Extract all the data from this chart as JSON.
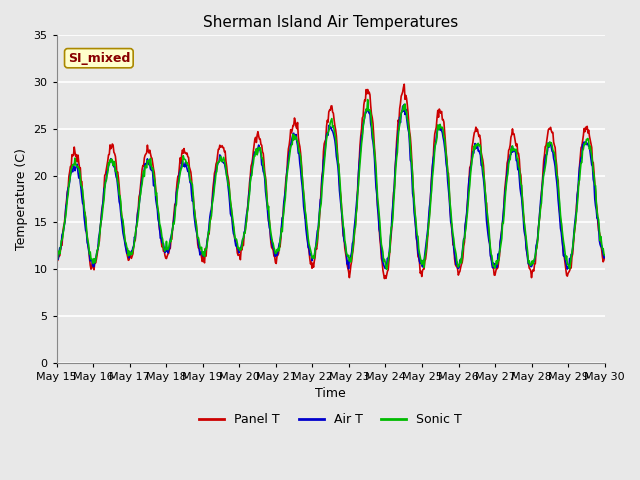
{
  "title": "Sherman Island Air Temperatures",
  "xlabel": "Time",
  "ylabel": "Temperature (C)",
  "annotation_text": "SI_mixed",
  "annotation_bg": "#ffffcc",
  "annotation_border": "#aa8800",
  "annotation_text_color": "#880000",
  "ylim": [
    0,
    35
  ],
  "yticks": [
    0,
    5,
    10,
    15,
    20,
    25,
    30,
    35
  ],
  "line_colors": [
    "#cc0000",
    "#0000cc",
    "#00bb00"
  ],
  "line_labels": [
    "Panel T",
    "Air T",
    "Sonic T"
  ],
  "plot_bg_color": "#e8e8e8",
  "fig_bg_color": "#e8e8e8",
  "grid_color": "#ffffff",
  "title_fontsize": 11,
  "label_fontsize": 9,
  "tick_fontsize": 8
}
